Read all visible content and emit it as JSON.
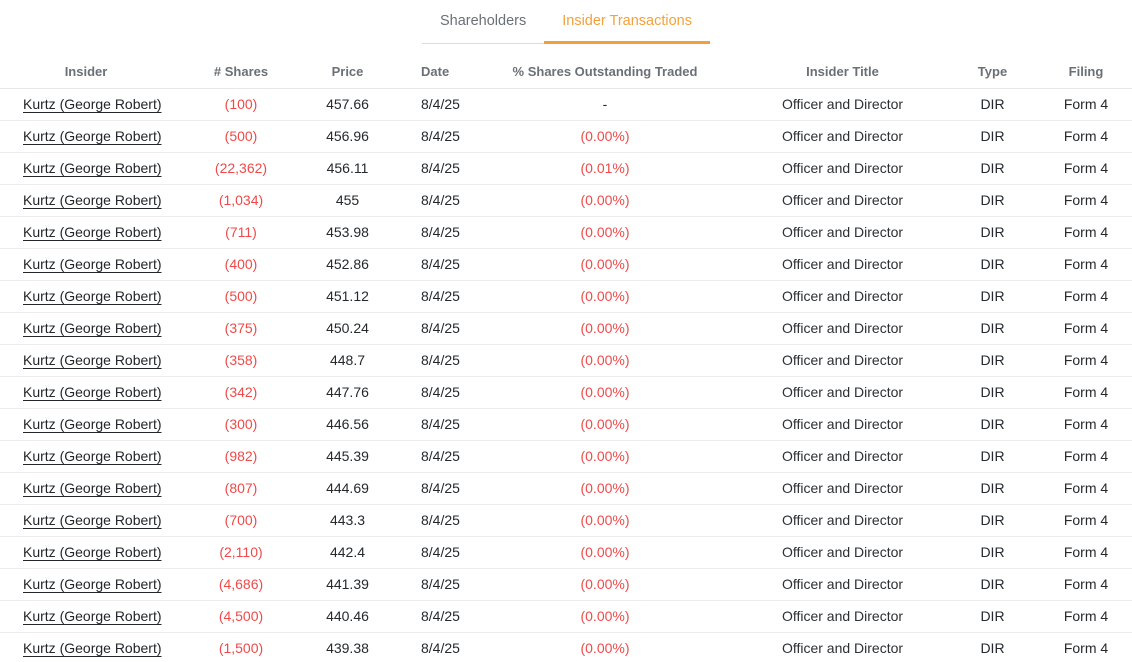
{
  "tabs": [
    {
      "label": "Shareholders",
      "active": false
    },
    {
      "label": "Insider Transactions",
      "active": true
    }
  ],
  "colors": {
    "accent_orange": "#F0A03A",
    "negative_red": "#EF4A49",
    "header_gray": "#6B7076",
    "text_dark": "#25282C"
  },
  "table": {
    "columns": [
      "Insider",
      "# Shares",
      "Price",
      "Date",
      "% Shares Outstanding Traded",
      "Insider Title",
      "Type",
      "Filing"
    ],
    "rows": [
      {
        "insider": "Kurtz (George Robert)",
        "shares": "(100)",
        "price": "457.66",
        "date": "8/4/25",
        "pct_traded": "-",
        "title": "Officer and Director",
        "type": "DIR",
        "filing": "Form 4"
      },
      {
        "insider": "Kurtz (George Robert)",
        "shares": "(500)",
        "price": "456.96",
        "date": "8/4/25",
        "pct_traded": "(0.00%)",
        "title": "Officer and Director",
        "type": "DIR",
        "filing": "Form 4"
      },
      {
        "insider": "Kurtz (George Robert)",
        "shares": "(22,362)",
        "price": "456.11",
        "date": "8/4/25",
        "pct_traded": "(0.01%)",
        "title": "Officer and Director",
        "type": "DIR",
        "filing": "Form 4"
      },
      {
        "insider": "Kurtz (George Robert)",
        "shares": "(1,034)",
        "price": "455",
        "date": "8/4/25",
        "pct_traded": "(0.00%)",
        "title": "Officer and Director",
        "type": "DIR",
        "filing": "Form 4"
      },
      {
        "insider": "Kurtz (George Robert)",
        "shares": "(711)",
        "price": "453.98",
        "date": "8/4/25",
        "pct_traded": "(0.00%)",
        "title": "Officer and Director",
        "type": "DIR",
        "filing": "Form 4"
      },
      {
        "insider": "Kurtz (George Robert)",
        "shares": "(400)",
        "price": "452.86",
        "date": "8/4/25",
        "pct_traded": "(0.00%)",
        "title": "Officer and Director",
        "type": "DIR",
        "filing": "Form 4"
      },
      {
        "insider": "Kurtz (George Robert)",
        "shares": "(500)",
        "price": "451.12",
        "date": "8/4/25",
        "pct_traded": "(0.00%)",
        "title": "Officer and Director",
        "type": "DIR",
        "filing": "Form 4"
      },
      {
        "insider": "Kurtz (George Robert)",
        "shares": "(375)",
        "price": "450.24",
        "date": "8/4/25",
        "pct_traded": "(0.00%)",
        "title": "Officer and Director",
        "type": "DIR",
        "filing": "Form 4"
      },
      {
        "insider": "Kurtz (George Robert)",
        "shares": "(358)",
        "price": "448.7",
        "date": "8/4/25",
        "pct_traded": "(0.00%)",
        "title": "Officer and Director",
        "type": "DIR",
        "filing": "Form 4"
      },
      {
        "insider": "Kurtz (George Robert)",
        "shares": "(342)",
        "price": "447.76",
        "date": "8/4/25",
        "pct_traded": "(0.00%)",
        "title": "Officer and Director",
        "type": "DIR",
        "filing": "Form 4"
      },
      {
        "insider": "Kurtz (George Robert)",
        "shares": "(300)",
        "price": "446.56",
        "date": "8/4/25",
        "pct_traded": "(0.00%)",
        "title": "Officer and Director",
        "type": "DIR",
        "filing": "Form 4"
      },
      {
        "insider": "Kurtz (George Robert)",
        "shares": "(982)",
        "price": "445.39",
        "date": "8/4/25",
        "pct_traded": "(0.00%)",
        "title": "Officer and Director",
        "type": "DIR",
        "filing": "Form 4"
      },
      {
        "insider": "Kurtz (George Robert)",
        "shares": "(807)",
        "price": "444.69",
        "date": "8/4/25",
        "pct_traded": "(0.00%)",
        "title": "Officer and Director",
        "type": "DIR",
        "filing": "Form 4"
      },
      {
        "insider": "Kurtz (George Robert)",
        "shares": "(700)",
        "price": "443.3",
        "date": "8/4/25",
        "pct_traded": "(0.00%)",
        "title": "Officer and Director",
        "type": "DIR",
        "filing": "Form 4"
      },
      {
        "insider": "Kurtz (George Robert)",
        "shares": "(2,110)",
        "price": "442.4",
        "date": "8/4/25",
        "pct_traded": "(0.00%)",
        "title": "Officer and Director",
        "type": "DIR",
        "filing": "Form 4"
      },
      {
        "insider": "Kurtz (George Robert)",
        "shares": "(4,686)",
        "price": "441.39",
        "date": "8/4/25",
        "pct_traded": "(0.00%)",
        "title": "Officer and Director",
        "type": "DIR",
        "filing": "Form 4"
      },
      {
        "insider": "Kurtz (George Robert)",
        "shares": "(4,500)",
        "price": "440.46",
        "date": "8/4/25",
        "pct_traded": "(0.00%)",
        "title": "Officer and Director",
        "type": "DIR",
        "filing": "Form 4"
      },
      {
        "insider": "Kurtz (George Robert)",
        "shares": "(1,500)",
        "price": "439.38",
        "date": "8/4/25",
        "pct_traded": "(0.00%)",
        "title": "Officer and Director",
        "type": "DIR",
        "filing": "Form 4"
      }
    ]
  }
}
